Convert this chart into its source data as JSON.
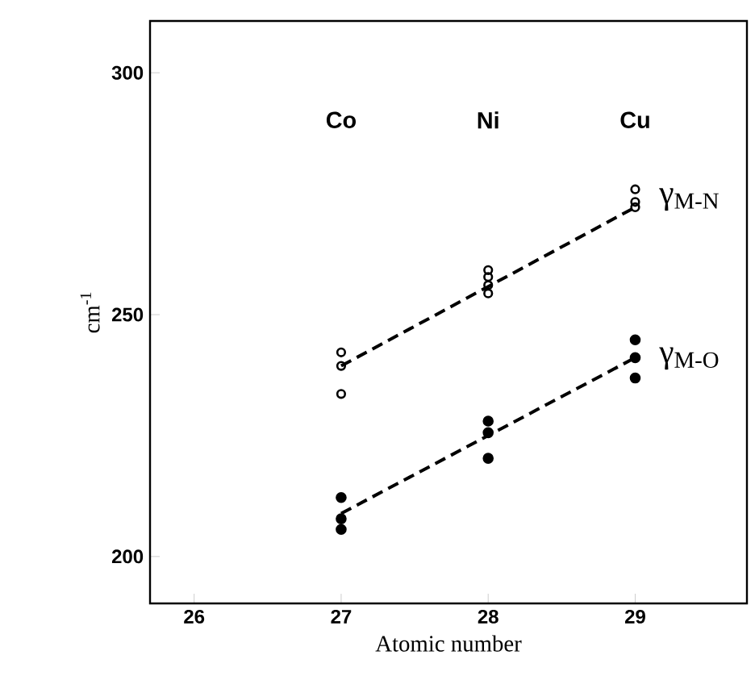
{
  "chart_data": {
    "type": "scatter",
    "xlabel": "Atomic number",
    "ylabel": "cm$^{-1}$",
    "xlim": [
      25.7,
      29.76
    ],
    "ylim": [
      190.3,
      310.7
    ],
    "xticks": [
      26,
      27,
      28,
      29
    ],
    "yticks": [
      200,
      250,
      300
    ],
    "grid": false,
    "legend": false,
    "marker": "circle",
    "series": [
      {
        "name": "γ$_{M-N}$",
        "color": "#000000",
        "x": [
          27,
          27,
          27,
          28,
          28,
          28,
          28,
          29,
          29,
          29
        ],
        "values": [
          242.2,
          239.4,
          233.6,
          259.2,
          257.8,
          256.1,
          254.4,
          275.9,
          273.3,
          272.2
        ]
      },
      {
        "name": "γ$_{M-O}$",
        "color": "#000000",
        "x": [
          27,
          27,
          27,
          28,
          28,
          28,
          29,
          29,
          29
        ],
        "values": [
          212.2,
          207.8,
          205.6,
          228,
          225.6,
          220.3,
          244.8,
          241.1,
          236.9
        ]
      },
      {
        "type": "line",
        "color": "#000000",
        "line_style": "dashed",
        "marker": "none",
        "x": [
          27,
          29
        ],
        "values": [
          239.4,
          272.2
        ]
      },
      {
        "type": "line",
        "color": "#000000",
        "line_style": "dashed",
        "marker": "none",
        "x": [
          27,
          29
        ],
        "values": [
          208.9,
          241.1
        ]
      }
    ],
    "annotations": [
      "Co",
      "Ni",
      "Cu"
    ]
  }
}
